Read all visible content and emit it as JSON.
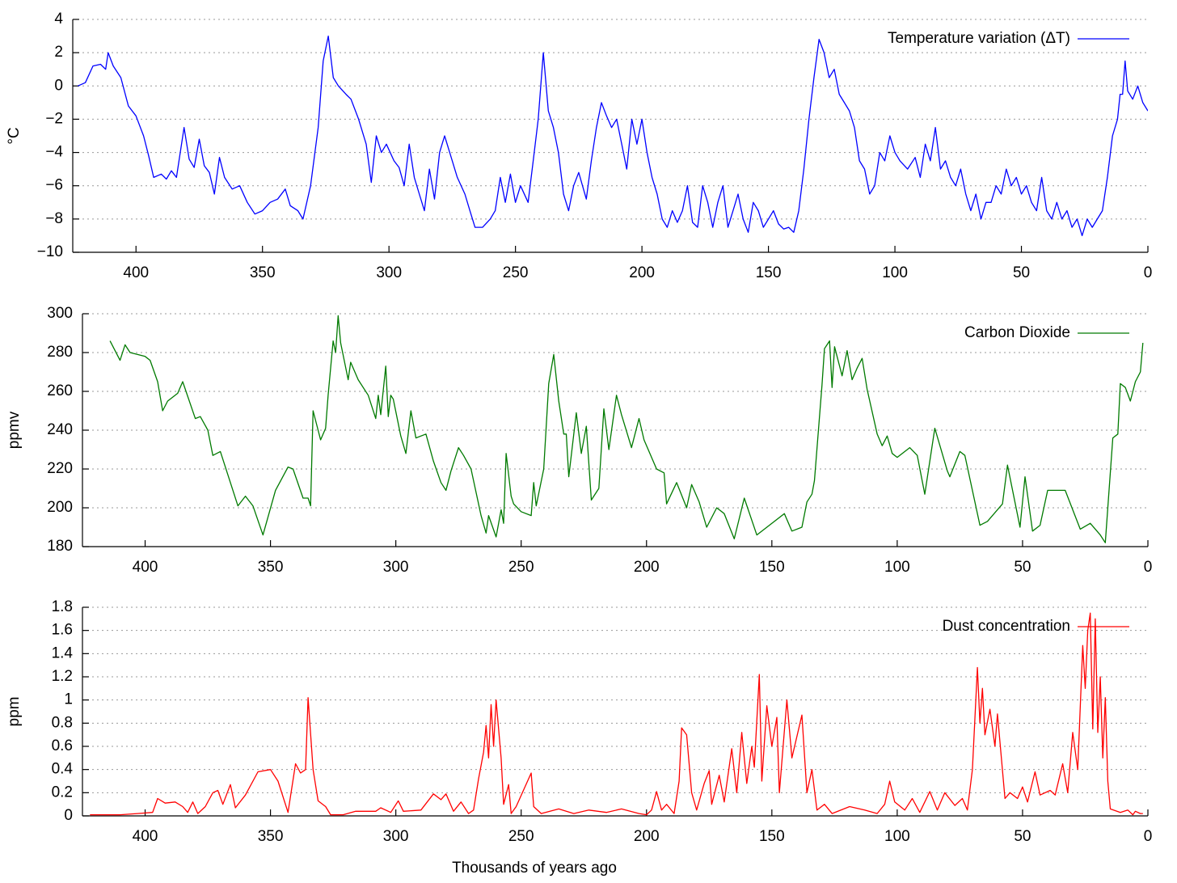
{
  "chart_data": [
    {
      "type": "line",
      "ylabel": "°C",
      "grid": true,
      "legend": "upper right",
      "xlim": [
        425,
        0
      ],
      "xticks": [
        400,
        350,
        300,
        250,
        200,
        150,
        100,
        50,
        0
      ],
      "ylim": [
        -10,
        4
      ],
      "yticks": [
        {
          "value": -10,
          "label": "−10"
        },
        {
          "value": -8,
          "label": "−8"
        },
        {
          "value": -6,
          "label": "−6"
        },
        {
          "value": -4,
          "label": "−4"
        },
        {
          "value": -2,
          "label": "−2"
        },
        0,
        2,
        4
      ],
      "x": [
        423,
        420,
        417,
        414,
        412,
        411,
        409,
        406,
        403,
        400,
        397,
        395,
        393,
        390,
        388,
        386,
        384,
        381,
        379,
        377,
        375,
        373,
        371,
        369,
        367,
        365,
        362,
        359,
        356,
        353,
        350,
        347,
        344,
        341,
        339,
        336,
        334,
        331,
        328,
        326,
        324,
        322,
        320,
        317,
        315,
        312,
        309,
        307,
        305,
        303,
        301,
        298,
        296,
        294,
        292,
        290,
        288,
        286,
        284,
        282,
        280,
        278,
        276,
        273,
        270,
        268,
        266,
        263,
        260,
        258,
        256,
        254,
        252,
        250,
        248,
        245,
        243,
        241,
        239,
        237,
        235,
        233,
        231,
        229,
        227,
        225,
        222,
        220,
        218,
        216,
        214,
        212,
        210,
        208,
        206,
        204,
        202,
        200,
        198,
        196,
        194,
        192,
        190,
        188,
        186,
        184,
        182,
        180,
        178,
        176,
        174,
        172,
        170,
        168,
        166,
        164,
        162,
        160,
        158,
        156,
        154,
        152,
        150,
        148,
        146,
        144,
        142,
        140,
        138,
        136,
        134,
        132,
        130,
        128,
        126,
        124,
        122,
        120,
        118,
        116,
        114,
        112,
        110,
        108,
        106,
        104,
        102,
        100,
        98,
        95,
        92,
        90,
        88,
        86,
        84,
        82,
        80,
        78,
        76,
        74,
        72,
        70,
        68,
        66,
        64,
        62,
        60,
        58,
        56,
        54,
        52,
        50,
        48,
        46,
        44,
        42,
        40,
        38,
        36,
        34,
        32,
        30,
        28,
        26,
        24,
        22,
        20,
        18,
        16,
        14,
        12,
        11,
        10,
        9,
        8,
        6,
        4,
        2,
        0
      ],
      "series": [
        {
          "name": "Temperature variation (ΔT)",
          "color": "#0000ff",
          "values": [
            0,
            0.2,
            1.2,
            1.3,
            1.0,
            2.0,
            1.2,
            0.5,
            -1.2,
            -1.8,
            -3,
            -4.2,
            -5.5,
            -5.3,
            -5.6,
            -5.1,
            -5.5,
            -2.5,
            -4.4,
            -4.9,
            -3.2,
            -4.8,
            -5.2,
            -6.5,
            -4.3,
            -5.5,
            -6.2,
            -6.0,
            -7.0,
            -7.7,
            -7.5,
            -7.0,
            -6.8,
            -6.2,
            -7.2,
            -7.5,
            -8.0,
            -6.0,
            -2.5,
            1.5,
            3.0,
            0.5,
            0,
            -0.5,
            -0.8,
            -2.0,
            -3.5,
            -5.8,
            -3.0,
            -4.0,
            -3.5,
            -4.5,
            -4.9,
            -6.0,
            -3.5,
            -5.5,
            -6.5,
            -7.5,
            -5.0,
            -6.8,
            -4.0,
            -3.0,
            -4.0,
            -5.5,
            -6.5,
            -7.5,
            -8.5,
            -8.5,
            -8.0,
            -7.5,
            -5.5,
            -7.0,
            -5.3,
            -7.0,
            -6.0,
            -7.0,
            -4.5,
            -2.0,
            2.0,
            -1.5,
            -2.5,
            -4.0,
            -6.5,
            -7.5,
            -6.0,
            -5.2,
            -6.8,
            -4.5,
            -2.5,
            -1.0,
            -1.8,
            -2.5,
            -2.0,
            -3.5,
            -5.0,
            -2.0,
            -3.5,
            -2.0,
            -4.0,
            -5.5,
            -6.5,
            -8.0,
            -8.5,
            -7.5,
            -8.2,
            -7.5,
            -6.0,
            -8.2,
            -8.5,
            -6.0,
            -7.0,
            -8.5,
            -7.0,
            -6.0,
            -8.5,
            -7.5,
            -6.5,
            -8.0,
            -8.8,
            -7.0,
            -7.5,
            -8.5,
            -8.0,
            -7.5,
            -8.3,
            -8.6,
            -8.5,
            -8.8,
            -7.5,
            -5.0,
            -2.0,
            0.5,
            2.8,
            2.0,
            0.5,
            1.0,
            -0.5,
            -1.0,
            -1.5,
            -2.5,
            -4.5,
            -5.0,
            -6.5,
            -6.0,
            -4.0,
            -4.5,
            -3.0,
            -4.0,
            -4.5,
            -5.0,
            -4.3,
            -5.5,
            -3.5,
            -4.5,
            -2.5,
            -5.0,
            -4.5,
            -5.5,
            -6.0,
            -5.0,
            -6.5,
            -7.5,
            -6.5,
            -8.0,
            -7.0,
            -7.0,
            -6.0,
            -6.5,
            -5.0,
            -6.0,
            -5.5,
            -6.5,
            -6.0,
            -7.0,
            -7.5,
            -5.5,
            -7.5,
            -8.0,
            -7.0,
            -8.0,
            -7.5,
            -8.5,
            -8.0,
            -9.0,
            -8.0,
            -8.5,
            -8.0,
            -7.5,
            -5.5,
            -3.0,
            -2.0,
            -0.5,
            -0.5,
            1.5,
            -0.3,
            -0.8,
            0.0,
            -1.0,
            -1.5
          ]
        }
      ]
    },
    {
      "type": "line",
      "ylabel": "ppmv",
      "grid": true,
      "legend": "upper right",
      "xlim": [
        425,
        0
      ],
      "xticks": [
        400,
        350,
        300,
        250,
        200,
        150,
        100,
        50,
        0
      ],
      "ylim": [
        180,
        300
      ],
      "yticks": [
        180,
        200,
        220,
        240,
        260,
        280,
        300
      ],
      "x": [
        414,
        410,
        408,
        406,
        400,
        398,
        395,
        393,
        391,
        387,
        385,
        380,
        378,
        375,
        373,
        370,
        363,
        360,
        357,
        353,
        348,
        343,
        341,
        337,
        335,
        334,
        333,
        330,
        328,
        327,
        325,
        324,
        323,
        322,
        319,
        318,
        315,
        311,
        308,
        307,
        306,
        304,
        303,
        302,
        301,
        298,
        296,
        294,
        292,
        288,
        285,
        282,
        280,
        278,
        275,
        273,
        270,
        266,
        264,
        263,
        260,
        258,
        257,
        256,
        254,
        253,
        250,
        246,
        245,
        244,
        241,
        239,
        237,
        235,
        233,
        232,
        231,
        228,
        226,
        224,
        222,
        219,
        217,
        215,
        212,
        210,
        206,
        203,
        201,
        196,
        193,
        192,
        188,
        184,
        182,
        179,
        176,
        172,
        169,
        165,
        161,
        156,
        151,
        145,
        142,
        138,
        136,
        134,
        133,
        130,
        129,
        127,
        126,
        125,
        122,
        120,
        118,
        116,
        114,
        112,
        108,
        106,
        104,
        102,
        100,
        95,
        92,
        89,
        85,
        80,
        79,
        75,
        73,
        67,
        64,
        58,
        56,
        51,
        49,
        46,
        43,
        40,
        33,
        27,
        23,
        19,
        17,
        14,
        12,
        11,
        9,
        7,
        5,
        3,
        2
      ],
      "series": [
        {
          "name": "Carbon Dioxide",
          "color": "#007a00",
          "values": [
            286,
            276,
            284,
            280,
            278,
            276,
            265,
            250,
            255,
            259,
            265,
            246,
            247,
            240,
            227,
            229,
            201,
            206,
            201,
            186,
            209,
            221,
            220,
            205,
            205,
            201,
            250,
            235,
            241,
            258,
            286,
            280,
            299,
            285,
            266,
            275,
            266,
            258,
            246,
            258,
            248,
            273,
            247,
            258,
            256,
            237,
            228,
            250,
            236,
            238,
            224,
            213,
            209,
            219,
            231,
            227,
            220,
            196,
            187,
            196,
            185,
            199,
            192,
            228,
            206,
            202,
            198,
            196,
            213,
            201,
            220,
            264,
            279,
            255,
            238,
            238,
            216,
            249,
            228,
            242,
            204,
            210,
            251,
            230,
            258,
            248,
            231,
            246,
            235,
            220,
            218,
            202,
            213,
            200,
            212,
            203,
            190,
            200,
            197,
            184,
            205,
            186,
            191,
            197,
            188,
            190,
            203,
            207,
            214,
            263,
            282,
            286,
            262,
            283,
            268,
            281,
            266,
            272,
            277,
            261,
            238,
            232,
            237,
            228,
            226,
            231,
            227,
            207,
            241,
            219,
            216,
            229,
            227,
            191,
            193,
            202,
            222,
            190,
            216,
            188,
            191,
            209,
            209,
            189,
            192,
            186,
            182,
            236,
            238,
            264,
            262,
            255,
            265,
            270,
            285
          ]
        }
      ]
    },
    {
      "type": "line",
      "ylabel": "ppm",
      "xlabel": "Thousands of years ago",
      "grid": true,
      "legend": "upper right",
      "xlim": [
        425,
        0
      ],
      "xticks": [
        400,
        350,
        300,
        250,
        200,
        150,
        100,
        50,
        0
      ],
      "ylim": [
        0,
        1.8
      ],
      "yticks": [
        0,
        0.2,
        0.4,
        0.6,
        0.8,
        1,
        1.2,
        1.4,
        1.6,
        1.8
      ],
      "x": [
        422,
        410,
        403,
        397,
        395,
        392,
        388,
        385,
        383,
        381,
        379,
        376,
        373,
        371,
        369,
        366,
        364,
        360,
        355,
        350,
        347,
        343,
        340,
        338,
        336,
        335,
        333,
        331,
        328,
        326,
        321,
        316,
        308,
        306,
        302,
        299,
        297,
        290,
        285,
        282,
        280,
        277,
        274,
        271,
        269,
        267,
        265,
        264,
        263,
        262,
        261,
        260,
        258,
        257,
        255,
        254,
        252,
        246,
        245,
        242,
        235,
        229,
        223,
        216,
        210,
        203,
        200,
        198,
        196,
        194,
        192,
        189,
        187,
        186,
        184,
        182,
        180,
        177,
        175,
        174,
        171,
        169,
        166,
        164,
        162,
        160,
        158,
        157,
        155,
        154,
        152,
        150,
        148,
        147,
        144,
        142,
        138,
        136,
        134,
        132,
        129,
        126,
        119,
        113,
        108,
        105,
        103,
        101,
        97,
        94,
        91,
        87,
        84,
        81,
        77,
        74,
        72,
        70,
        68,
        67,
        66,
        65,
        63,
        61,
        60,
        57,
        55,
        52,
        50,
        48,
        45,
        43,
        39,
        37,
        34,
        32,
        30,
        28,
        26,
        25,
        24,
        23,
        22,
        21,
        20,
        19,
        18,
        17,
        16,
        15,
        11,
        8,
        6,
        5,
        3,
        2
      ],
      "series": [
        {
          "name": "Dust concentration",
          "color": "#ff0000",
          "values": [
            0.01,
            0.01,
            0.02,
            0.03,
            0.15,
            0.11,
            0.12,
            0.08,
            0.03,
            0.12,
            0.02,
            0.08,
            0.2,
            0.22,
            0.1,
            0.27,
            0.07,
            0.18,
            0.38,
            0.4,
            0.3,
            0.03,
            0.45,
            0.37,
            0.4,
            1.02,
            0.4,
            0.13,
            0.08,
            0.01,
            0.01,
            0.04,
            0.04,
            0.07,
            0.03,
            0.13,
            0.04,
            0.05,
            0.19,
            0.14,
            0.19,
            0.04,
            0.12,
            0.02,
            0.05,
            0.32,
            0.55,
            0.78,
            0.5,
            0.96,
            0.6,
            1.0,
            0.5,
            0.1,
            0.27,
            0.02,
            0.08,
            0.37,
            0.08,
            0.02,
            0.06,
            0.02,
            0.05,
            0.03,
            0.06,
            0.02,
            0.01,
            0.05,
            0.21,
            0.05,
            0.1,
            0.02,
            0.3,
            0.76,
            0.7,
            0.2,
            0.05,
            0.28,
            0.39,
            0.1,
            0.35,
            0.12,
            0.58,
            0.2,
            0.72,
            0.28,
            0.6,
            0.42,
            1.22,
            0.3,
            0.95,
            0.6,
            0.85,
            0.2,
            1.0,
            0.5,
            0.87,
            0.2,
            0.4,
            0.05,
            0.1,
            0.02,
            0.08,
            0.05,
            0.02,
            0.1,
            0.3,
            0.12,
            0.05,
            0.15,
            0.03,
            0.21,
            0.05,
            0.2,
            0.09,
            0.15,
            0.05,
            0.4,
            1.28,
            0.8,
            1.1,
            0.7,
            0.92,
            0.6,
            0.88,
            0.15,
            0.2,
            0.15,
            0.25,
            0.12,
            0.38,
            0.18,
            0.22,
            0.18,
            0.45,
            0.2,
            0.72,
            0.4,
            1.47,
            1.1,
            1.6,
            1.75,
            0.75,
            1.7,
            0.72,
            1.2,
            0.5,
            1.02,
            0.3,
            0.06,
            0.03,
            0.05,
            0.01,
            0.04,
            0.02,
            0.02
          ]
        }
      ]
    }
  ]
}
